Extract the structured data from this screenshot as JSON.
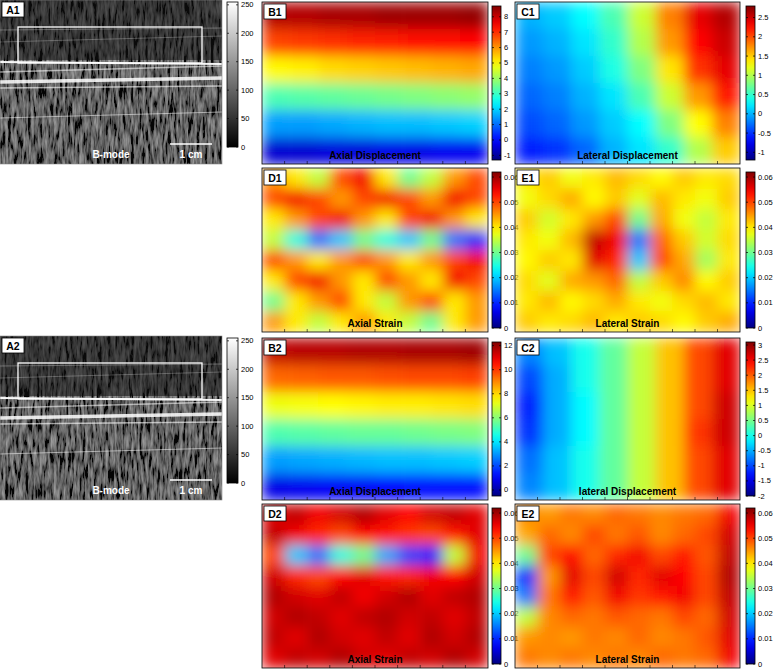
{
  "chart_data": [
    {
      "type": "image",
      "label": "A1",
      "title": "B-mode",
      "scale_label": "1 cm",
      "color_range": [
        0,
        255
      ],
      "color_ticks": [
        0,
        50,
        100,
        150,
        200,
        250
      ]
    },
    {
      "type": "heatmap",
      "label": "B1",
      "title": "Axial Displacement",
      "color_range": [
        -1.3,
        8.7
      ],
      "color_ticks": [
        -1,
        0,
        1,
        2,
        3,
        4,
        5,
        6,
        7,
        8
      ],
      "cells": [
        [
          8.2,
          8.2,
          8.3,
          8.3,
          8.4,
          8.4,
          8.4,
          8.5
        ],
        [
          6.8,
          6.9,
          7.0,
          7.1,
          7.2,
          7.3,
          7.3,
          7.4
        ],
        [
          5.0,
          5.1,
          5.3,
          5.4,
          5.5,
          5.6,
          5.7,
          5.8
        ],
        [
          3.2,
          3.3,
          3.4,
          3.5,
          3.6,
          3.7,
          3.8,
          3.9
        ],
        [
          1.5,
          1.5,
          1.6,
          1.7,
          1.8,
          1.8,
          1.9,
          2.0
        ],
        [
          -0.5,
          -0.5,
          -0.4,
          -0.4,
          -0.3,
          -0.3,
          -0.2,
          -0.2
        ]
      ]
    },
    {
      "type": "heatmap",
      "label": "C1",
      "title": "Lateral Displacement",
      "color_range": [
        -1.2,
        2.8
      ],
      "color_ticks": [
        -1,
        -0.5,
        0,
        0.5,
        1,
        1.5,
        2,
        2.5
      ],
      "cells": [
        [
          0.0,
          0.1,
          0.3,
          0.6,
          1.1,
          1.8,
          2.4,
          2.6
        ],
        [
          -0.1,
          0.0,
          0.2,
          0.5,
          1.0,
          1.7,
          2.3,
          2.5
        ],
        [
          -0.2,
          -0.1,
          0.1,
          0.4,
          0.8,
          1.4,
          2.1,
          2.4
        ],
        [
          -0.3,
          -0.2,
          0.0,
          0.2,
          0.6,
          1.1,
          1.7,
          2.2
        ],
        [
          -0.4,
          -0.3,
          -0.1,
          0.1,
          0.3,
          0.8,
          1.3,
          1.8
        ],
        [
          -0.6,
          -0.5,
          -0.3,
          0.0,
          0.2,
          0.5,
          1.0,
          1.5
        ]
      ]
    },
    {
      "type": "heatmap",
      "label": "D1",
      "title": "Axial Strain",
      "color_range": [
        0,
        0.062
      ],
      "color_ticks": [
        0,
        0.01,
        0.02,
        0.03,
        0.04,
        0.05,
        0.06
      ],
      "cells": [
        [
          0.045,
          0.04,
          0.035,
          0.05,
          0.055,
          0.04,
          0.03,
          0.035,
          0.045,
          0.05
        ],
        [
          0.05,
          0.055,
          0.05,
          0.045,
          0.05,
          0.055,
          0.05,
          0.045,
          0.055,
          0.05
        ],
        [
          0.04,
          0.045,
          0.05,
          0.055,
          0.045,
          0.04,
          0.05,
          0.055,
          0.045,
          0.04
        ],
        [
          0.035,
          0.025,
          0.015,
          0.02,
          0.03,
          0.025,
          0.02,
          0.03,
          0.015,
          0.01
        ],
        [
          0.05,
          0.045,
          0.04,
          0.045,
          0.05,
          0.045,
          0.04,
          0.045,
          0.05,
          0.055
        ],
        [
          0.04,
          0.05,
          0.055,
          0.045,
          0.04,
          0.05,
          0.045,
          0.04,
          0.055,
          0.05
        ],
        [
          0.03,
          0.04,
          0.045,
          0.05,
          0.04,
          0.035,
          0.045,
          0.05,
          0.04,
          0.045
        ],
        [
          0.045,
          0.04,
          0.035,
          0.04,
          0.045,
          0.04,
          0.035,
          0.03,
          0.04,
          0.045
        ]
      ]
    },
    {
      "type": "heatmap",
      "label": "E1",
      "title": "Lateral Strain",
      "color_range": [
        0,
        0.062
      ],
      "color_ticks": [
        0,
        0.01,
        0.02,
        0.03,
        0.04,
        0.05,
        0.06
      ],
      "cells": [
        [
          0.04,
          0.042,
          0.038,
          0.04,
          0.043,
          0.041,
          0.039,
          0.042,
          0.04,
          0.041
        ],
        [
          0.038,
          0.041,
          0.044,
          0.039,
          0.042,
          0.037,
          0.043,
          0.04,
          0.038,
          0.042
        ],
        [
          0.042,
          0.036,
          0.04,
          0.045,
          0.05,
          0.03,
          0.044,
          0.038,
          0.035,
          0.04
        ],
        [
          0.04,
          0.038,
          0.043,
          0.058,
          0.055,
          0.015,
          0.048,
          0.042,
          0.036,
          0.041
        ],
        [
          0.039,
          0.042,
          0.04,
          0.056,
          0.052,
          0.02,
          0.05,
          0.044,
          0.033,
          0.04
        ],
        [
          0.041,
          0.037,
          0.044,
          0.045,
          0.048,
          0.035,
          0.042,
          0.046,
          0.039,
          0.042
        ],
        [
          0.04,
          0.043,
          0.039,
          0.041,
          0.044,
          0.04,
          0.038,
          0.041,
          0.043,
          0.04
        ],
        [
          0.042,
          0.04,
          0.041,
          0.043,
          0.04,
          0.042,
          0.041,
          0.039,
          0.042,
          0.044
        ]
      ]
    },
    {
      "type": "image",
      "label": "A2",
      "title": "B-mode",
      "scale_label": "1 cm",
      "color_range": [
        0,
        255
      ],
      "color_ticks": [
        0,
        50,
        100,
        150,
        200,
        250
      ]
    },
    {
      "type": "heatmap",
      "label": "B2",
      "title": "Axial Displacement",
      "color_range": [
        -0.5,
        12.3
      ],
      "color_ticks": [
        0,
        2,
        4,
        6,
        8,
        10,
        12
      ],
      "cells": [
        [
          11.5,
          11.6,
          11.6,
          11.7,
          11.7,
          11.8,
          11.8,
          11.9
        ],
        [
          9.4,
          9.5,
          9.6,
          9.6,
          9.7,
          9.8,
          9.8,
          9.9
        ],
        [
          7.3,
          7.4,
          7.5,
          7.6,
          7.7,
          7.7,
          7.8,
          7.9
        ],
        [
          5.3,
          5.4,
          5.5,
          5.6,
          5.6,
          5.7,
          5.8,
          5.9
        ],
        [
          3.1,
          3.2,
          3.3,
          3.4,
          3.5,
          3.5,
          3.6,
          3.7
        ],
        [
          0.8,
          0.9,
          1.0,
          1.0,
          1.1,
          1.2,
          1.2,
          1.3
        ]
      ]
    },
    {
      "type": "heatmap",
      "label": "C2",
      "title": "lateral Displacement",
      "color_range": [
        -2,
        3.1
      ],
      "color_ticks": [
        -2,
        -1.5,
        -1,
        -0.5,
        0,
        0.5,
        1,
        1.5,
        2,
        2.5,
        3
      ],
      "cells": [
        [
          -0.7,
          -0.4,
          0.0,
          0.4,
          0.9,
          1.5,
          2.1,
          2.6
        ],
        [
          -1.0,
          -0.5,
          0.0,
          0.4,
          0.9,
          1.5,
          2.1,
          2.6
        ],
        [
          -1.2,
          -0.5,
          -0.1,
          0.4,
          0.9,
          1.5,
          2.1,
          2.7
        ],
        [
          -1.1,
          -0.5,
          -0.1,
          0.4,
          0.9,
          1.5,
          2.2,
          2.7
        ],
        [
          -0.8,
          -0.4,
          0.0,
          0.4,
          0.9,
          1.5,
          2.1,
          2.6
        ],
        [
          -0.7,
          -0.4,
          0.0,
          0.4,
          0.9,
          1.5,
          2.1,
          2.6
        ]
      ]
    },
    {
      "type": "heatmap",
      "label": "D2",
      "title": "Axial Strain",
      "color_range": [
        0,
        0.062
      ],
      "color_ticks": [
        0,
        0.01,
        0.02,
        0.03,
        0.04,
        0.05,
        0.06
      ],
      "cells": [
        [
          0.056,
          0.058,
          0.055,
          0.057,
          0.059,
          0.056,
          0.054,
          0.057,
          0.058,
          0.056
        ],
        [
          0.058,
          0.055,
          0.052,
          0.05,
          0.054,
          0.053,
          0.051,
          0.05,
          0.053,
          0.056
        ],
        [
          0.05,
          0.02,
          0.015,
          0.025,
          0.03,
          0.018,
          0.012,
          0.01,
          0.035,
          0.055
        ],
        [
          0.057,
          0.052,
          0.05,
          0.054,
          0.056,
          0.053,
          0.052,
          0.055,
          0.054,
          0.057
        ],
        [
          0.059,
          0.057,
          0.056,
          0.058,
          0.055,
          0.057,
          0.059,
          0.056,
          0.058,
          0.059
        ],
        [
          0.057,
          0.059,
          0.058,
          0.056,
          0.058,
          0.059,
          0.057,
          0.058,
          0.056,
          0.058
        ],
        [
          0.058,
          0.056,
          0.059,
          0.057,
          0.056,
          0.058,
          0.056,
          0.059,
          0.057,
          0.059
        ],
        [
          0.056,
          0.058,
          0.057,
          0.059,
          0.057,
          0.056,
          0.058,
          0.057,
          0.059,
          0.057
        ]
      ]
    },
    {
      "type": "heatmap",
      "label": "E2",
      "title": "Lateral Strain",
      "color_range": [
        0,
        0.062
      ],
      "color_ticks": [
        0,
        0.01,
        0.02,
        0.03,
        0.04,
        0.05,
        0.06
      ],
      "cells": [
        [
          0.046,
          0.045,
          0.047,
          0.046,
          0.048,
          0.047,
          0.046,
          0.047,
          0.048,
          0.055
        ],
        [
          0.044,
          0.048,
          0.046,
          0.05,
          0.047,
          0.049,
          0.046,
          0.048,
          0.05,
          0.057
        ],
        [
          0.03,
          0.05,
          0.054,
          0.048,
          0.052,
          0.055,
          0.05,
          0.053,
          0.049,
          0.058
        ],
        [
          0.01,
          0.045,
          0.056,
          0.05,
          0.057,
          0.052,
          0.056,
          0.054,
          0.05,
          0.059
        ],
        [
          0.015,
          0.047,
          0.053,
          0.049,
          0.055,
          0.051,
          0.053,
          0.055,
          0.05,
          0.058
        ],
        [
          0.035,
          0.046,
          0.048,
          0.047,
          0.049,
          0.048,
          0.047,
          0.05,
          0.048,
          0.057
        ],
        [
          0.045,
          0.046,
          0.045,
          0.047,
          0.046,
          0.048,
          0.046,
          0.047,
          0.049,
          0.056
        ],
        [
          0.047,
          0.046,
          0.047,
          0.046,
          0.047,
          0.046,
          0.048,
          0.047,
          0.048,
          0.055
        ]
      ]
    }
  ]
}
